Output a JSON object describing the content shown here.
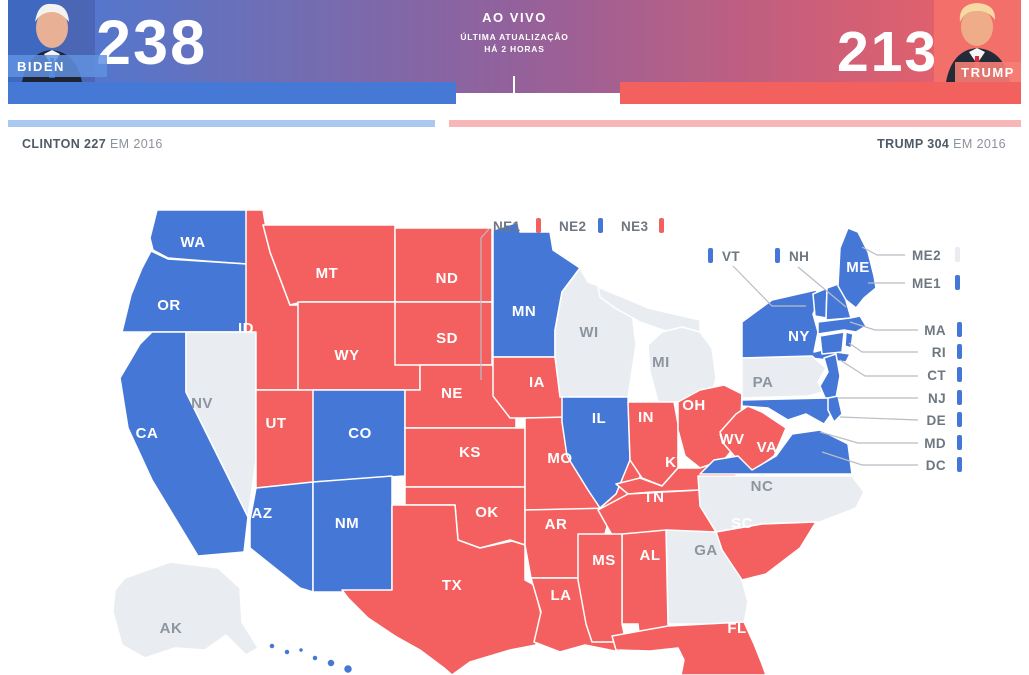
{
  "header": {
    "live": "AO VIVO",
    "updated1": "ÚLTIMA ATUALIZAÇÃO",
    "updated2": "HÁ 2 HORAS",
    "dem_name": "BIDEN",
    "dem_votes": "238",
    "rep_name": "TRUMP",
    "rep_votes": "213"
  },
  "bars": {
    "dem_votes": 238,
    "rep_votes": 213,
    "dem_2016": 227,
    "rep_2016": 304,
    "total": 538
  },
  "prev2016": {
    "left_strong": "CLINTON 227",
    "left_rest": "EM 2016",
    "right_strong": "TRUMP 304",
    "right_rest": "EM 2016"
  },
  "colors": {
    "dem": "#4577d7",
    "rep": "#f4605f",
    "undecided": "#e9edf1",
    "dem_light": "#abc8f0",
    "rep_light": "#f7b6b8",
    "gray_label": "#8d959e",
    "white_label": "#ffffff",
    "callout_text": "#6e7781",
    "leader_line": "#b8bec5"
  },
  "map": {
    "results": {
      "WA": "dem",
      "OR": "dem",
      "CA": "dem",
      "NV": "undecided",
      "ID": "rep",
      "MT": "rep",
      "WY": "rep",
      "UT": "rep",
      "CO": "dem",
      "AZ": "dem",
      "NM": "dem",
      "ND": "rep",
      "SD": "rep",
      "NE": "rep",
      "KS": "rep",
      "OK": "rep",
      "TX": "rep",
      "MN": "dem",
      "IA": "rep",
      "MO": "rep",
      "AR": "rep",
      "LA": "rep",
      "WI": "undecided",
      "MI": "undecided",
      "IL": "dem",
      "IN": "rep",
      "OH": "rep",
      "KY": "rep",
      "TN": "rep",
      "WV": "rep",
      "VA": "dem",
      "NC": "undecided",
      "SC": "rep",
      "GA": "undecided",
      "AL": "rep",
      "MS": "rep",
      "FL": "rep",
      "AK": "undecided",
      "HI": "dem",
      "NY": "dem",
      "PA": "undecided",
      "NJ": "dem",
      "MD": "dem",
      "DE": "dem",
      "VT": "dem",
      "NH": "dem",
      "ME": "dem",
      "MA": "dem",
      "CT": "dem",
      "RI": "dem"
    },
    "callouts": [
      {
        "id": "NE1",
        "result": "rep"
      },
      {
        "id": "NE2",
        "result": "dem"
      },
      {
        "id": "NE3",
        "result": "rep"
      },
      {
        "id": "VT",
        "result": "dem"
      },
      {
        "id": "NH",
        "result": "dem"
      },
      {
        "id": "ME2",
        "result": "undecided"
      },
      {
        "id": "ME1",
        "result": "dem"
      },
      {
        "id": "MA",
        "result": "dem"
      },
      {
        "id": "RI",
        "result": "dem"
      },
      {
        "id": "CT",
        "result": "dem"
      },
      {
        "id": "NJ",
        "result": "dem"
      },
      {
        "id": "DE",
        "result": "dem"
      },
      {
        "id": "MD",
        "result": "dem"
      },
      {
        "id": "DC",
        "result": "dem"
      }
    ]
  }
}
